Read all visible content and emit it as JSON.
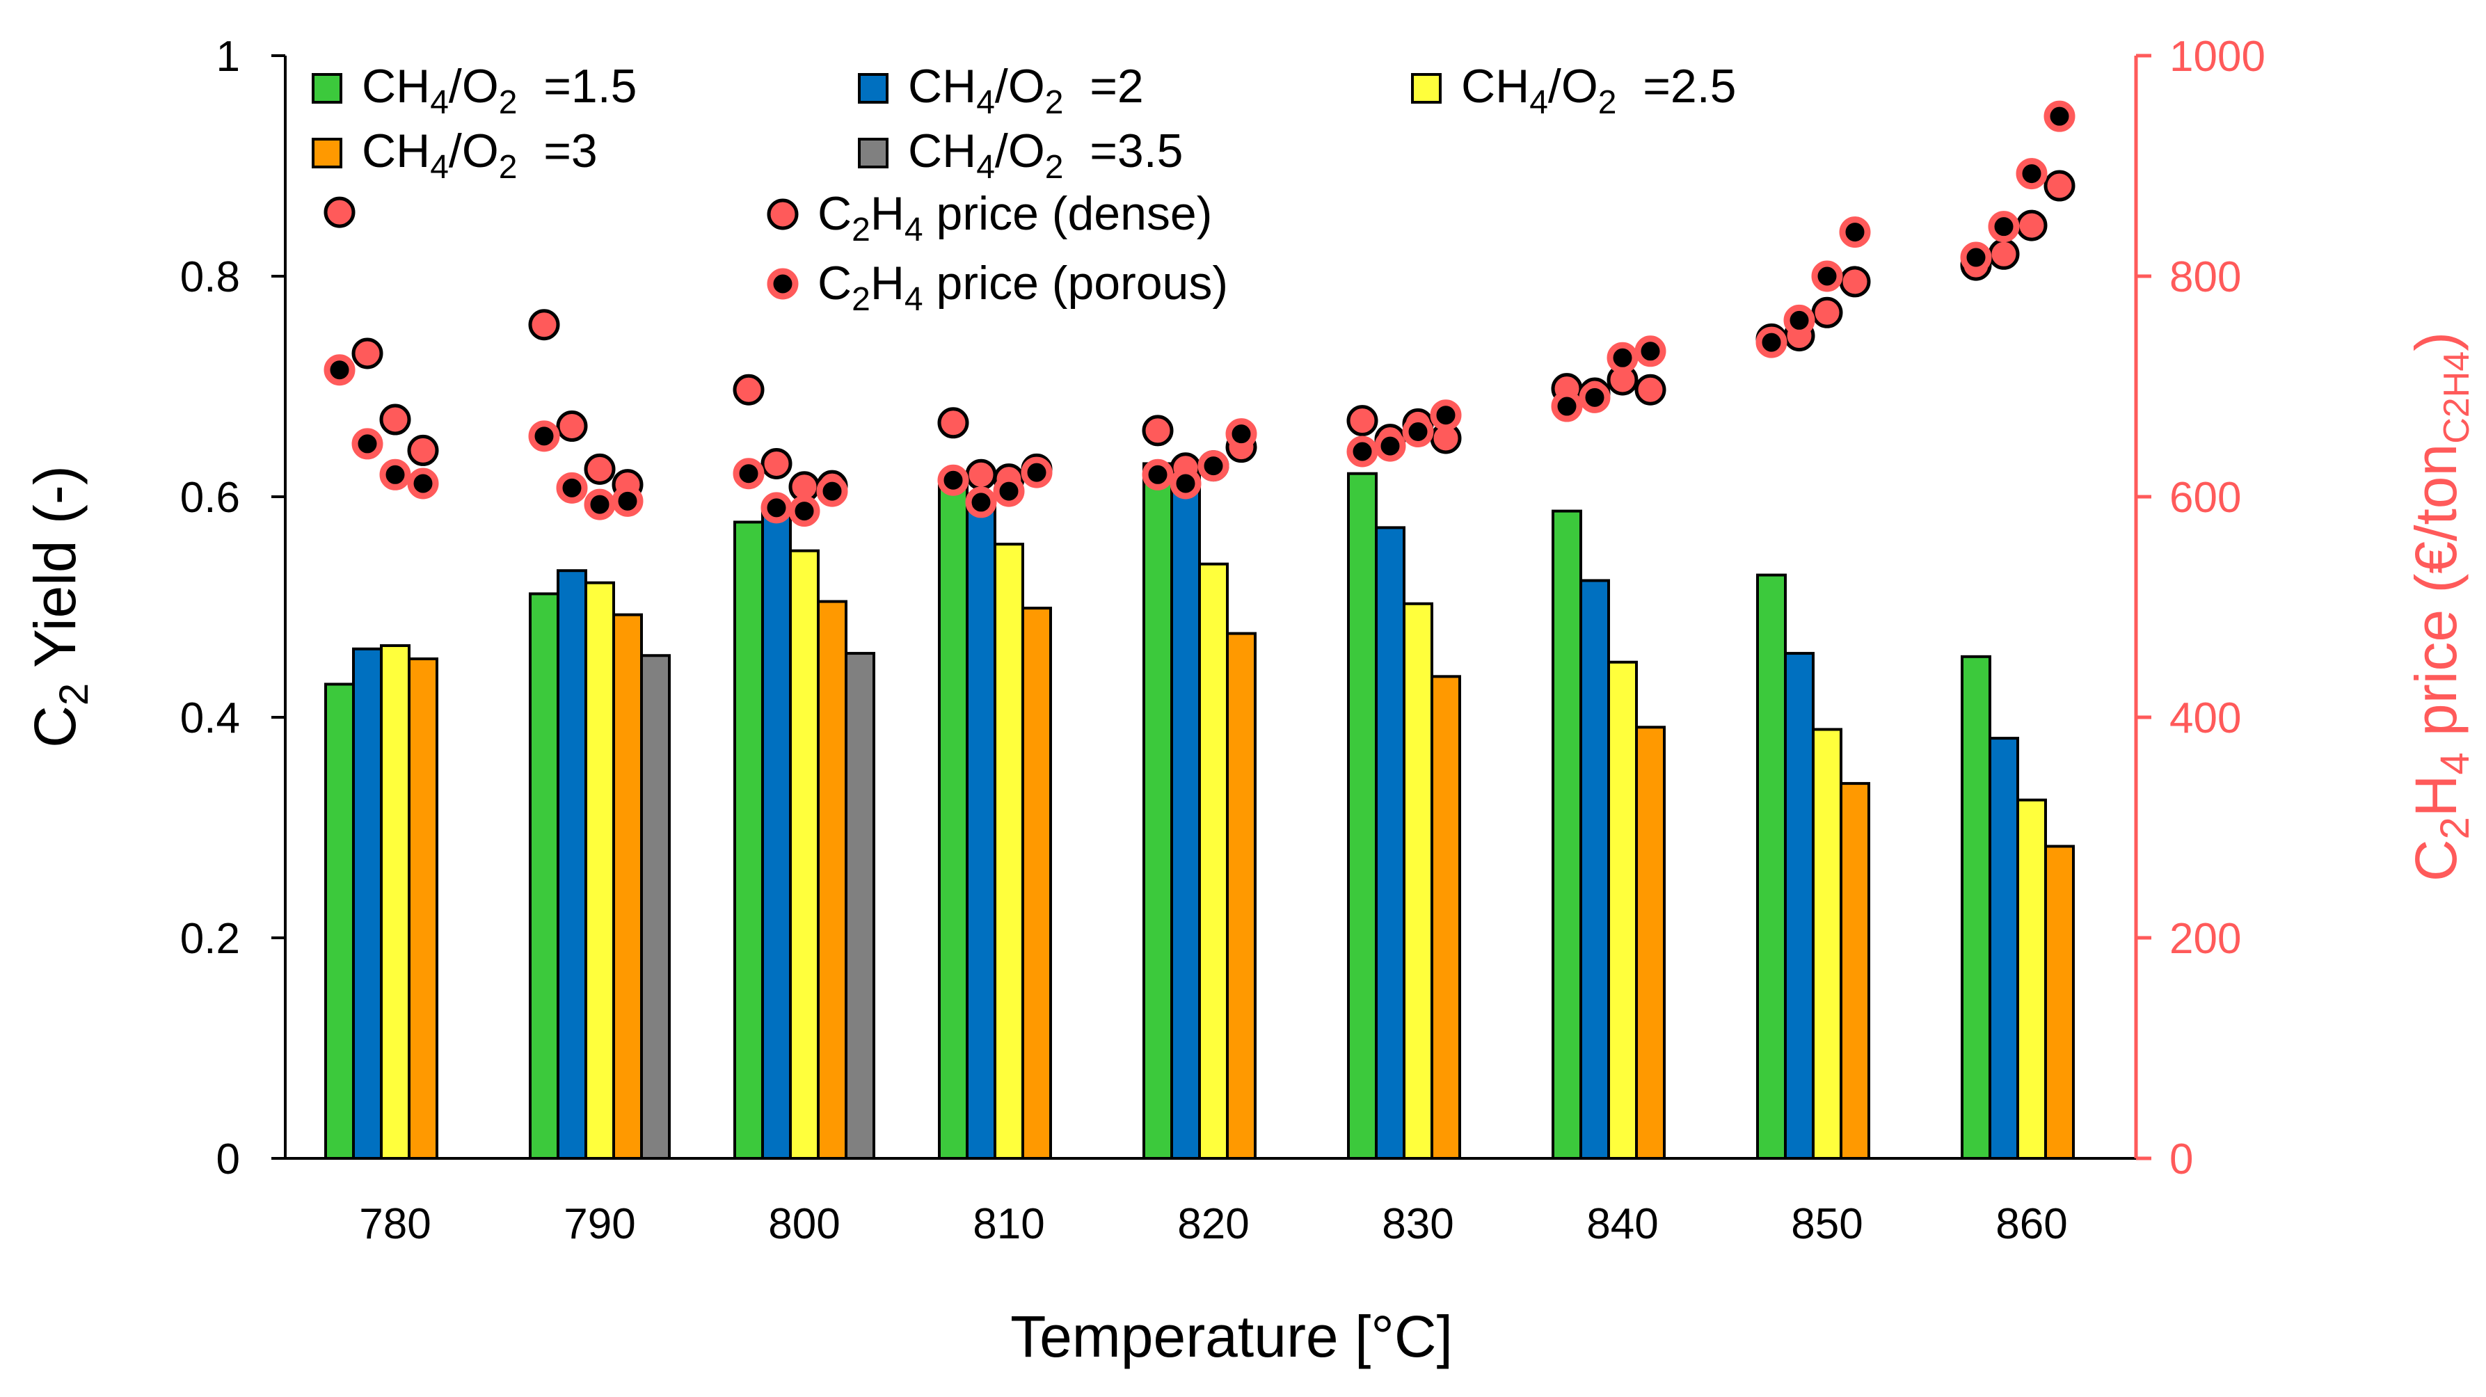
{
  "chart_data": {
    "type": "bar",
    "xlabel": "Temperature [°C]",
    "ylabel": "C",
    "ylabel_sub": "2",
    "ylabel_tail": " Yield (-)",
    "y2label_a": "C",
    "y2label_sub1": "2",
    "y2label_b": "H",
    "y2label_sub2": "4",
    "y2label_c": " price (€/ton",
    "y2label_sub3": "C2H4",
    "y2label_d": ")",
    "categories": [
      "780",
      "790",
      "800",
      "810",
      "820",
      "830",
      "840",
      "850",
      "860"
    ],
    "ylim": [
      0,
      1
    ],
    "yticks": [
      "0",
      "0.2",
      "0.4",
      "0.6",
      "0.8",
      "1"
    ],
    "y2lim": [
      0,
      1000
    ],
    "y2ticks": [
      "0",
      "200",
      "400",
      "600",
      "800",
      "1000"
    ],
    "series": [
      {
        "name": "CH4/O2 =1.5",
        "lbl_a": "CH",
        "lbl_s1": "4",
        "lbl_b": "/O",
        "lbl_s2": "2",
        "lbl_c": "=1.5",
        "color": "#3CC93C",
        "values": [
          0.43,
          0.512,
          0.577,
          0.61,
          0.63,
          0.621,
          0.587,
          0.529,
          0.455
        ]
      },
      {
        "name": "CH4/O2 =2",
        "lbl_a": "CH",
        "lbl_s1": "4",
        "lbl_b": "/O",
        "lbl_s2": "2",
        "lbl_c": "=2",
        "color": "#0070C0",
        "values": [
          0.462,
          0.533,
          0.588,
          0.6,
          0.619,
          0.572,
          0.524,
          0.458,
          0.381
        ]
      },
      {
        "name": "CH4/O2 =2.5",
        "lbl_a": "CH",
        "lbl_s1": "4",
        "lbl_b": "/O",
        "lbl_s2": "2",
        "lbl_c": "=2.5",
        "color": "#FFFF3C",
        "values": [
          0.465,
          0.522,
          0.551,
          0.557,
          0.539,
          0.503,
          0.45,
          0.389,
          0.325
        ]
      },
      {
        "name": "CH4/O2 =3",
        "lbl_a": "CH",
        "lbl_s1": "4",
        "lbl_b": "/O",
        "lbl_s2": "2",
        "lbl_c": "=3",
        "color": "#FF9900",
        "values": [
          0.453,
          0.493,
          0.505,
          0.499,
          0.476,
          0.437,
          0.391,
          0.34,
          0.283
        ]
      },
      {
        "name": "CH4/O2 =3.5",
        "lbl_a": "CH",
        "lbl_s1": "4",
        "lbl_b": "/O",
        "lbl_s2": "2",
        "lbl_c": "=3.5",
        "color": "#808080",
        "values": [
          null,
          0.456,
          0.458,
          null,
          null,
          null,
          null,
          null,
          null
        ]
      }
    ],
    "scatter_series": [
      {
        "name": "C2H4 price (dense)",
        "lbl_a": "C",
        "lbl_s1": "2",
        "lbl_b": "H",
        "lbl_s2": "4",
        "lbl_c": " price (dense)",
        "fill": "#FF5A5A",
        "stroke": "#000000",
        "axis": "right",
        "points": [
          {
            "x": "780",
            "series": "CH4/O2 =1.5",
            "value": 858
          },
          {
            "x": "780",
            "series": "CH4/O2 =2",
            "value": 730
          },
          {
            "x": "780",
            "series": "CH4/O2 =2.5",
            "value": 670
          },
          {
            "x": "780",
            "series": "CH4/O2 =3",
            "value": 642
          },
          {
            "x": "790",
            "series": "CH4/O2 =1.5",
            "value": 756
          },
          {
            "x": "790",
            "series": "CH4/O2 =2",
            "value": 664
          },
          {
            "x": "790",
            "series": "CH4/O2 =2.5",
            "value": 625
          },
          {
            "x": "790",
            "series": "CH4/O2 =3",
            "value": 611
          },
          {
            "x": "800",
            "series": "CH4/O2 =1.5",
            "value": 697
          },
          {
            "x": "800",
            "series": "CH4/O2 =2",
            "value": 630
          },
          {
            "x": "800",
            "series": "CH4/O2 =2.5",
            "value": 609
          },
          {
            "x": "800",
            "series": "CH4/O2 =3",
            "value": 610
          },
          {
            "x": "810",
            "series": "CH4/O2 =1.5",
            "value": 667
          },
          {
            "x": "810",
            "series": "CH4/O2 =2",
            "value": 620
          },
          {
            "x": "810",
            "series": "CH4/O2 =2.5",
            "value": 616
          },
          {
            "x": "810",
            "series": "CH4/O2 =3",
            "value": 625
          },
          {
            "x": "820",
            "series": "CH4/O2 =1.5",
            "value": 660
          },
          {
            "x": "820",
            "series": "CH4/O2 =2",
            "value": 626
          },
          {
            "x": "820",
            "series": "CH4/O2 =2.5",
            "value": 628
          },
          {
            "x": "820",
            "series": "CH4/O2 =3",
            "value": 645
          },
          {
            "x": "830",
            "series": "CH4/O2 =1.5",
            "value": 669
          },
          {
            "x": "830",
            "series": "CH4/O2 =2",
            "value": 652
          },
          {
            "x": "830",
            "series": "CH4/O2 =2.5",
            "value": 666
          },
          {
            "x": "830",
            "series": "CH4/O2 =3",
            "value": 653
          },
          {
            "x": "840",
            "series": "CH4/O2 =1.5",
            "value": 698
          },
          {
            "x": "840",
            "series": "CH4/O2 =2",
            "value": 694
          },
          {
            "x": "840",
            "series": "CH4/O2 =2.5",
            "value": 706
          },
          {
            "x": "840",
            "series": "CH4/O2 =3",
            "value": 697
          },
          {
            "x": "850",
            "series": "CH4/O2 =1.5",
            "value": 743
          },
          {
            "x": "850",
            "series": "CH4/O2 =2",
            "value": 746
          },
          {
            "x": "850",
            "series": "CH4/O2 =2.5",
            "value": 767
          },
          {
            "x": "850",
            "series": "CH4/O2 =3",
            "value": 795
          },
          {
            "x": "860",
            "series": "CH4/O2 =1.5",
            "value": 810
          },
          {
            "x": "860",
            "series": "CH4/O2 =2",
            "value": 820
          },
          {
            "x": "860",
            "series": "CH4/O2 =2.5",
            "value": 846
          },
          {
            "x": "860",
            "series": "CH4/O2 =3",
            "value": 882
          }
        ]
      },
      {
        "name": "C2H4 price (porous)",
        "lbl_a": "C",
        "lbl_s1": "2",
        "lbl_b": "H",
        "lbl_s2": "4",
        "lbl_c": " price (porous)",
        "fill": "#000000",
        "stroke": "#FF5A5A",
        "axis": "right",
        "points": [
          {
            "x": "780",
            "series": "CH4/O2 =1.5",
            "value": 715
          },
          {
            "x": "780",
            "series": "CH4/O2 =2",
            "value": 648
          },
          {
            "x": "780",
            "series": "CH4/O2 =2.5",
            "value": 620
          },
          {
            "x": "780",
            "series": "CH4/O2 =3",
            "value": 612
          },
          {
            "x": "790",
            "series": "CH4/O2 =1.5",
            "value": 655
          },
          {
            "x": "790",
            "series": "CH4/O2 =2",
            "value": 608
          },
          {
            "x": "790",
            "series": "CH4/O2 =2.5",
            "value": 593
          },
          {
            "x": "790",
            "series": "CH4/O2 =3",
            "value": 596
          },
          {
            "x": "800",
            "series": "CH4/O2 =1.5",
            "value": 621
          },
          {
            "x": "800",
            "series": "CH4/O2 =2",
            "value": 590
          },
          {
            "x": "800",
            "series": "CH4/O2 =2.5",
            "value": 587
          },
          {
            "x": "800",
            "series": "CH4/O2 =3",
            "value": 605
          },
          {
            "x": "810",
            "series": "CH4/O2 =1.5",
            "value": 615
          },
          {
            "x": "810",
            "series": "CH4/O2 =2",
            "value": 595
          },
          {
            "x": "810",
            "series": "CH4/O2 =2.5",
            "value": 605
          },
          {
            "x": "810",
            "series": "CH4/O2 =3",
            "value": 622
          },
          {
            "x": "820",
            "series": "CH4/O2 =1.5",
            "value": 620
          },
          {
            "x": "820",
            "series": "CH4/O2 =2",
            "value": 612
          },
          {
            "x": "820",
            "series": "CH4/O2 =2.5",
            "value": 628
          },
          {
            "x": "820",
            "series": "CH4/O2 =3",
            "value": 657
          },
          {
            "x": "830",
            "series": "CH4/O2 =1.5",
            "value": 641
          },
          {
            "x": "830",
            "series": "CH4/O2 =2",
            "value": 646
          },
          {
            "x": "830",
            "series": "CH4/O2 =2.5",
            "value": 659
          },
          {
            "x": "830",
            "series": "CH4/O2 =3",
            "value": 674
          },
          {
            "x": "840",
            "series": "CH4/O2 =1.5",
            "value": 682
          },
          {
            "x": "840",
            "series": "CH4/O2 =2",
            "value": 690
          },
          {
            "x": "840",
            "series": "CH4/O2 =2.5",
            "value": 726
          },
          {
            "x": "840",
            "series": "CH4/O2 =3",
            "value": 732
          },
          {
            "x": "850",
            "series": "CH4/O2 =1.5",
            "value": 740
          },
          {
            "x": "850",
            "series": "CH4/O2 =2",
            "value": 760
          },
          {
            "x": "850",
            "series": "CH4/O2 =2.5",
            "value": 800
          },
          {
            "x": "850",
            "series": "CH4/O2 =3",
            "value": 840
          },
          {
            "x": "860",
            "series": "CH4/O2 =1.5",
            "value": 817
          },
          {
            "x": "860",
            "series": "CH4/O2 =2",
            "value": 845
          },
          {
            "x": "860",
            "series": "CH4/O2 =2.5",
            "value": 893
          },
          {
            "x": "860",
            "series": "CH4/O2 =3",
            "value": 945
          }
        ]
      }
    ],
    "colors": {
      "axis": "#000000",
      "right_axis": "#FF5A5A",
      "bar_edge": "#000000"
    },
    "legend_position": "top-left inside plot",
    "grid": false
  }
}
